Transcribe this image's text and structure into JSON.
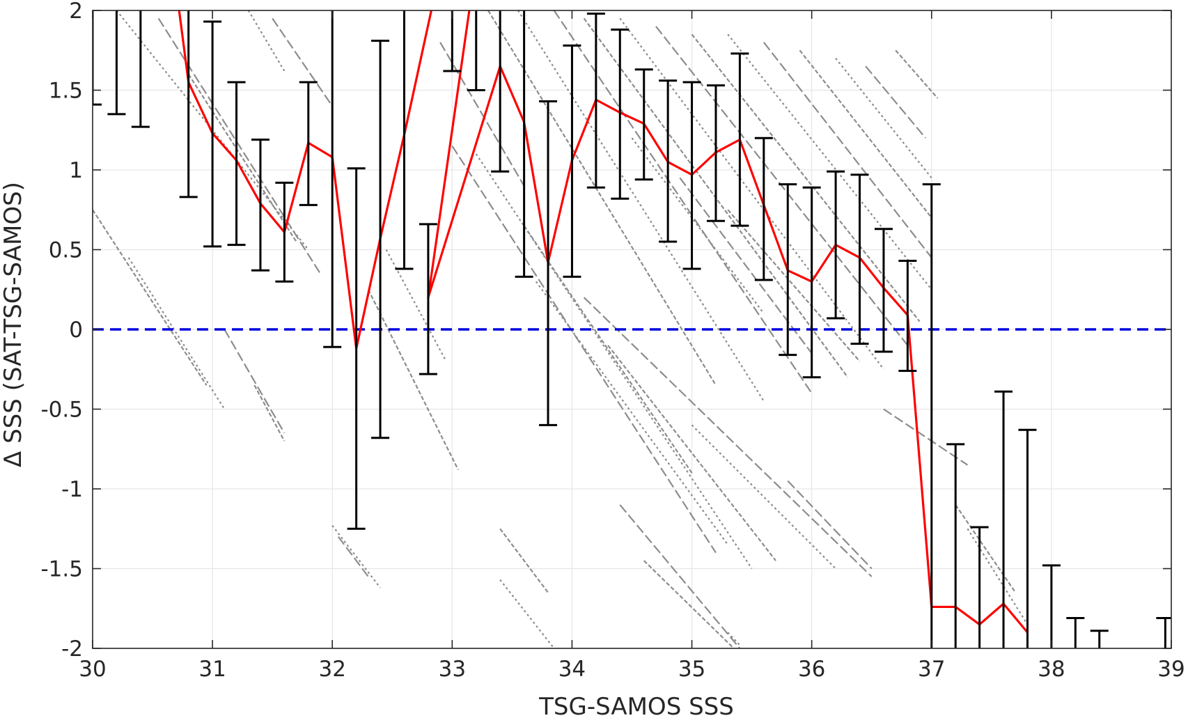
{
  "chart_data": {
    "type": "line",
    "title": "",
    "xlabel": "TSG-SAMOS SSS",
    "ylabel": "Δ SSS (SAT-TSG-SAMOS)",
    "xlim": [
      30,
      39
    ],
    "ylim": [
      -2,
      2
    ],
    "x_ticks": [
      "30",
      "31",
      "32",
      "33",
      "34",
      "35",
      "36",
      "37",
      "38",
      "39"
    ],
    "y_ticks": [
      "2",
      "1.5",
      "1",
      "0.5",
      "0",
      "-0.5",
      "-1",
      "-1.5",
      "-2"
    ],
    "grid": true,
    "legend": "none",
    "colors": {
      "mean_line": "#ff0000",
      "error_bars": "#000000",
      "zero_line": "#0000dd",
      "scatter": "#8c8c8c",
      "grid": "#e6e6e6",
      "axes": "#262626"
    },
    "zero_reference": 0,
    "bin_means": {
      "x": [
        30.8,
        31.0,
        31.2,
        31.4,
        31.6,
        31.8,
        32.0,
        32.2,
        32.4,
        32.6,
        32.8,
        33.4,
        33.6,
        33.8,
        34.0,
        34.2,
        34.4,
        34.6,
        34.8,
        35.0,
        35.2,
        35.4,
        35.6,
        35.8,
        36.0,
        36.2,
        36.4,
        36.6,
        36.8,
        37.0,
        37.2,
        37.4,
        37.6,
        37.8
      ],
      "y": [
        1.55,
        1.23,
        1.06,
        0.79,
        0.61,
        1.17,
        1.08,
        -0.12,
        0.57,
        1.22,
        0.2,
        1.65,
        1.3,
        0.42,
        1.06,
        1.44,
        1.36,
        1.29,
        1.05,
        0.97,
        1.11,
        1.19,
        0.78,
        0.37,
        0.3,
        0.53,
        0.45,
        0.26,
        0.09,
        -1.74,
        -1.74,
        -1.85,
        -1.72,
        -1.9
      ]
    },
    "error_bars": [
      {
        "x": 30.0,
        "low": 1.41,
        "high": 2.0
      },
      {
        "x": 30.2,
        "low": 1.35,
        "high": 2.0
      },
      {
        "x": 30.4,
        "low": 1.27,
        "high": 2.0
      },
      {
        "x": 30.8,
        "low": 0.83,
        "high": 2.0
      },
      {
        "x": 31.0,
        "low": 0.52,
        "high": 1.93
      },
      {
        "x": 31.2,
        "low": 0.53,
        "high": 1.55
      },
      {
        "x": 31.4,
        "low": 0.37,
        "high": 1.19
      },
      {
        "x": 31.6,
        "low": 0.3,
        "high": 0.92
      },
      {
        "x": 31.8,
        "low": 0.78,
        "high": 1.55
      },
      {
        "x": 32.0,
        "low": -0.11,
        "high": 2.0
      },
      {
        "x": 32.2,
        "low": -1.25,
        "high": 1.01
      },
      {
        "x": 32.4,
        "low": -0.68,
        "high": 1.81
      },
      {
        "x": 32.6,
        "low": 0.38,
        "high": 2.0
      },
      {
        "x": 32.8,
        "low": -0.28,
        "high": 0.66
      },
      {
        "x": 33.0,
        "low": 1.62,
        "high": 2.0
      },
      {
        "x": 33.2,
        "low": 1.5,
        "high": 2.0
      },
      {
        "x": 33.4,
        "low": 0.99,
        "high": 2.0
      },
      {
        "x": 33.6,
        "low": 0.33,
        "high": 2.0
      },
      {
        "x": 33.8,
        "low": -0.6,
        "high": 1.43
      },
      {
        "x": 34.0,
        "low": 0.33,
        "high": 1.78
      },
      {
        "x": 34.2,
        "low": 0.89,
        "high": 1.98
      },
      {
        "x": 34.4,
        "low": 0.82,
        "high": 1.88
      },
      {
        "x": 34.6,
        "low": 0.94,
        "high": 1.63
      },
      {
        "x": 34.8,
        "low": 0.55,
        "high": 1.56
      },
      {
        "x": 35.0,
        "low": 0.38,
        "high": 1.55
      },
      {
        "x": 35.2,
        "low": 0.68,
        "high": 1.53
      },
      {
        "x": 35.4,
        "low": 0.65,
        "high": 1.73
      },
      {
        "x": 35.6,
        "low": 0.31,
        "high": 1.2
      },
      {
        "x": 35.8,
        "low": -0.16,
        "high": 0.91
      },
      {
        "x": 36.0,
        "low": -0.3,
        "high": 0.89
      },
      {
        "x": 36.2,
        "low": 0.07,
        "high": 0.99
      },
      {
        "x": 36.4,
        "low": -0.09,
        "high": 0.97
      },
      {
        "x": 36.6,
        "low": -0.14,
        "high": 0.63
      },
      {
        "x": 36.8,
        "low": -0.26,
        "high": 0.43
      },
      {
        "x": 37.0,
        "low": -2.0,
        "high": 0.91
      },
      {
        "x": 37.2,
        "low": -2.0,
        "high": -0.72
      },
      {
        "x": 37.4,
        "low": -2.0,
        "high": -1.24
      },
      {
        "x": 37.6,
        "low": -2.0,
        "high": -0.39
      },
      {
        "x": 37.8,
        "low": -2.0,
        "high": -0.63
      },
      {
        "x": 38.0,
        "low": -2.0,
        "high": -1.48
      },
      {
        "x": 38.2,
        "low": -2.0,
        "high": -1.81
      },
      {
        "x": 38.4,
        "low": -2.0,
        "high": -1.89
      },
      {
        "x": 38.95,
        "low": -2.0,
        "high": -1.81
      }
    ],
    "scatter_streaks": [
      {
        "x1": 30.2,
        "y1": 2.0,
        "x2": 31.8,
        "y2": 0.5
      },
      {
        "x1": 30.55,
        "y1": 1.95,
        "x2": 31.9,
        "y2": 0.35
      },
      {
        "x1": 30.8,
        "y1": 1.6,
        "x2": 31.7,
        "y2": 0.55
      },
      {
        "x1": 31.3,
        "y1": 2.0,
        "x2": 31.6,
        "y2": 1.62
      },
      {
        "x1": 31.5,
        "y1": 1.95,
        "x2": 32.0,
        "y2": 1.4
      },
      {
        "x1": 30.0,
        "y1": 0.75,
        "x2": 30.95,
        "y2": -0.35
      },
      {
        "x1": 30.3,
        "y1": 0.45,
        "x2": 31.1,
        "y2": -0.5
      },
      {
        "x1": 31.1,
        "y1": 0.0,
        "x2": 31.6,
        "y2": -0.65
      },
      {
        "x1": 31.35,
        "y1": -0.35,
        "x2": 31.6,
        "y2": -0.7
      },
      {
        "x1": 32.0,
        "y1": -1.23,
        "x2": 32.4,
        "y2": -1.62
      },
      {
        "x1": 32.05,
        "y1": -1.3,
        "x2": 32.3,
        "y2": -1.55
      },
      {
        "x1": 32.3,
        "y1": 0.25,
        "x2": 33.05,
        "y2": -0.88
      },
      {
        "x1": 32.45,
        "y1": 0.5,
        "x2": 32.95,
        "y2": -0.2
      },
      {
        "x1": 32.9,
        "y1": 1.8,
        "x2": 33.6,
        "y2": 0.9
      },
      {
        "x1": 33.3,
        "y1": 2.0,
        "x2": 35.2,
        "y2": -0.35
      },
      {
        "x1": 33.55,
        "y1": 2.0,
        "x2": 35.6,
        "y2": -0.45
      },
      {
        "x1": 33.85,
        "y1": 2.0,
        "x2": 36.0,
        "y2": -0.4
      },
      {
        "x1": 34.1,
        "y1": 1.95,
        "x2": 36.3,
        "y2": -0.3
      },
      {
        "x1": 34.4,
        "y1": 1.95,
        "x2": 36.6,
        "y2": -0.25
      },
      {
        "x1": 34.7,
        "y1": 1.9,
        "x2": 36.8,
        "y2": -0.1
      },
      {
        "x1": 35.0,
        "y1": 1.85,
        "x2": 36.9,
        "y2": 0.05
      },
      {
        "x1": 35.3,
        "y1": 1.85,
        "x2": 37.0,
        "y2": 0.25
      },
      {
        "x1": 35.6,
        "y1": 1.8,
        "x2": 37.0,
        "y2": 0.45
      },
      {
        "x1": 35.9,
        "y1": 1.75,
        "x2": 37.0,
        "y2": 0.7
      },
      {
        "x1": 36.2,
        "y1": 1.7,
        "x2": 37.0,
        "y2": 0.95
      },
      {
        "x1": 36.45,
        "y1": 1.65,
        "x2": 36.95,
        "y2": 1.2
      },
      {
        "x1": 36.7,
        "y1": 1.75,
        "x2": 37.05,
        "y2": 1.45
      },
      {
        "x1": 34.5,
        "y1": 1.2,
        "x2": 35.6,
        "y2": 0.1
      },
      {
        "x1": 34.9,
        "y1": 0.95,
        "x2": 36.0,
        "y2": -0.15
      },
      {
        "x1": 35.3,
        "y1": 0.75,
        "x2": 36.4,
        "y2": -0.2
      },
      {
        "x1": 33.2,
        "y1": 1.1,
        "x2": 35.5,
        "y2": -1.5
      },
      {
        "x1": 33.0,
        "y1": 1.15,
        "x2": 35.2,
        "y2": -1.4
      },
      {
        "x1": 33.6,
        "y1": 0.65,
        "x2": 35.0,
        "y2": -0.9
      },
      {
        "x1": 33.7,
        "y1": 0.3,
        "x2": 35.3,
        "y2": -1.35
      },
      {
        "x1": 34.1,
        "y1": 0.2,
        "x2": 36.5,
        "y2": -1.55
      },
      {
        "x1": 34.3,
        "y1": -0.1,
        "x2": 35.7,
        "y2": -1.45
      },
      {
        "x1": 35.0,
        "y1": -0.6,
        "x2": 36.2,
        "y2": -1.5
      },
      {
        "x1": 35.8,
        "y1": -0.95,
        "x2": 36.5,
        "y2": -1.5
      },
      {
        "x1": 33.4,
        "y1": -1.25,
        "x2": 33.8,
        "y2": -1.65
      },
      {
        "x1": 33.4,
        "y1": -1.57,
        "x2": 33.85,
        "y2": -2.0
      },
      {
        "x1": 34.4,
        "y1": -1.1,
        "x2": 35.4,
        "y2": -2.0
      },
      {
        "x1": 34.6,
        "y1": -1.45,
        "x2": 35.35,
        "y2": -2.0
      },
      {
        "x1": 35.3,
        "y1": -1.9,
        "x2": 35.4,
        "y2": -1.98
      },
      {
        "x1": 36.6,
        "y1": -0.5,
        "x2": 37.3,
        "y2": -0.85
      },
      {
        "x1": 37.2,
        "y1": -1.1,
        "x2": 37.7,
        "y2": -1.65
      },
      {
        "x1": 37.3,
        "y1": -1.25,
        "x2": 37.8,
        "y2": -1.85
      }
    ]
  }
}
